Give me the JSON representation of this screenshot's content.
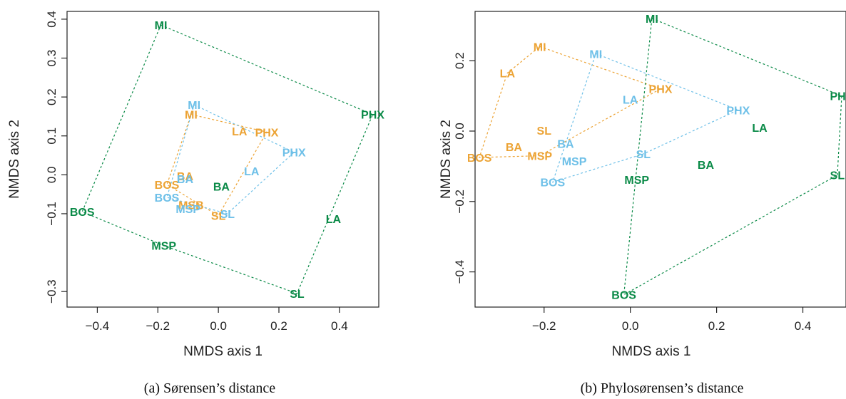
{
  "colors": {
    "orange": "#eca334",
    "blue": "#6ec0e8",
    "green": "#0a8a47"
  },
  "chart_data": [
    {
      "type": "scatter",
      "caption": "(a) Sørensen’s distance",
      "xlabel": "NMDS axis 1",
      "ylabel": "NMDS axis 2",
      "xlim": [
        -0.5,
        0.53
      ],
      "ylim": [
        -0.34,
        0.42
      ],
      "xticks": [
        -0.4,
        -0.2,
        0.0,
        0.2,
        0.4
      ],
      "xtick_labels": [
        "−0.4",
        "−0.2",
        "0.0",
        "0.2",
        "0.4"
      ],
      "yticks": [
        -0.3,
        -0.1,
        0.0,
        0.1,
        0.2,
        0.3,
        0.4
      ],
      "ytick_labels": [
        "−0.3",
        "−0.1",
        "0.0",
        "0.1",
        "0.2",
        "0.3",
        "0.4"
      ],
      "series": [
        {
          "color": "orange",
          "points": [
            {
              "label": "MI",
              "x": -0.09,
              "y": 0.155
            },
            {
              "label": "LA",
              "x": 0.07,
              "y": 0.112
            },
            {
              "label": "PHX",
              "x": 0.16,
              "y": 0.11
            },
            {
              "label": "BA",
              "x": -0.11,
              "y": -0.003
            },
            {
              "label": "BOS",
              "x": -0.17,
              "y": -0.025
            },
            {
              "label": "MSB",
              "x": -0.09,
              "y": -0.077
            },
            {
              "label": "SL",
              "x": 0.0,
              "y": -0.105
            }
          ],
          "hull": [
            "MI",
            "PHX",
            "SL",
            "BOS"
          ]
        },
        {
          "color": "blue",
          "points": [
            {
              "label": "MI",
              "x": -0.08,
              "y": 0.18
            },
            {
              "label": "PHX",
              "x": 0.25,
              "y": 0.058
            },
            {
              "label": "LA",
              "x": 0.11,
              "y": 0.01
            },
            {
              "label": "BA",
              "x": -0.11,
              "y": -0.01
            },
            {
              "label": "BOS",
              "x": -0.17,
              "y": -0.058
            },
            {
              "label": "MSP",
              "x": -0.1,
              "y": -0.087
            },
            {
              "label": "SL",
              "x": 0.03,
              "y": -0.1
            }
          ],
          "hull": [
            "MI",
            "PHX",
            "SL",
            "BOS"
          ]
        },
        {
          "color": "green",
          "points": [
            {
              "label": "MI",
              "x": -0.19,
              "y": 0.385
            },
            {
              "label": "PHX",
              "x": 0.51,
              "y": 0.155
            },
            {
              "label": "BA",
              "x": 0.01,
              "y": -0.03
            },
            {
              "label": "BOS",
              "x": -0.45,
              "y": -0.095
            },
            {
              "label": "LA",
              "x": 0.38,
              "y": -0.113
            },
            {
              "label": "MSP",
              "x": -0.18,
              "y": -0.182
            },
            {
              "label": "SL",
              "x": 0.26,
              "y": -0.305
            }
          ],
          "hull": [
            "MI",
            "PHX",
            "SL",
            "MSP",
            "BOS"
          ]
        }
      ]
    },
    {
      "type": "scatter",
      "caption": "(b) Phylosørensen’s distance",
      "xlabel": "NMDS axis 1",
      "ylabel": "NMDS axis 2",
      "xlim": [
        -0.36,
        0.5
      ],
      "ylim": [
        -0.5,
        0.34
      ],
      "xticks": [
        -0.2,
        0.0,
        0.2,
        0.4
      ],
      "xtick_labels": [
        "−0.2",
        "0.0",
        "0.2",
        "0.4"
      ],
      "yticks": [
        -0.4,
        -0.2,
        0.0,
        0.2
      ],
      "ytick_labels": [
        "−0.4",
        "−0.2",
        "0.0",
        "0.2"
      ],
      "series": [
        {
          "color": "orange",
          "points": [
            {
              "label": "MI",
              "x": -0.21,
              "y": 0.24
            },
            {
              "label": "LA",
              "x": -0.285,
              "y": 0.165
            },
            {
              "label": "PHX",
              "x": 0.07,
              "y": 0.12
            },
            {
              "label": "SL",
              "x": -0.2,
              "y": 0.002
            },
            {
              "label": "BA",
              "x": -0.27,
              "y": -0.045
            },
            {
              "label": "BOS",
              "x": -0.35,
              "y": -0.075
            },
            {
              "label": "MSP",
              "x": -0.21,
              "y": -0.07
            }
          ],
          "hull": [
            "MI",
            "PHX",
            "MSP",
            "BOS",
            "LA"
          ]
        },
        {
          "color": "blue",
          "points": [
            {
              "label": "MI",
              "x": -0.08,
              "y": 0.22
            },
            {
              "label": "LA",
              "x": 0.0,
              "y": 0.09
            },
            {
              "label": "PHX",
              "x": 0.25,
              "y": 0.06
            },
            {
              "label": "BA",
              "x": -0.15,
              "y": -0.035
            },
            {
              "label": "MSP",
              "x": -0.13,
              "y": -0.085
            },
            {
              "label": "SL",
              "x": 0.03,
              "y": -0.065
            },
            {
              "label": "BOS",
              "x": -0.18,
              "y": -0.145
            }
          ],
          "hull": [
            "MI",
            "PHX",
            "SL",
            "BOS"
          ]
        },
        {
          "color": "green",
          "points": [
            {
              "label": "MI",
              "x": 0.05,
              "y": 0.32
            },
            {
              "label": "PHX",
              "x": 0.49,
              "y": 0.1
            },
            {
              "label": "LA",
              "x": 0.3,
              "y": 0.01
            },
            {
              "label": "BA",
              "x": 0.175,
              "y": -0.095
            },
            {
              "label": "SL",
              "x": 0.48,
              "y": -0.125
            },
            {
              "label": "MSP",
              "x": 0.015,
              "y": -0.138
            },
            {
              "label": "BOS",
              "x": -0.015,
              "y": -0.465
            }
          ],
          "hull": [
            "MI",
            "PHX",
            "SL",
            "BOS"
          ]
        }
      ]
    }
  ]
}
